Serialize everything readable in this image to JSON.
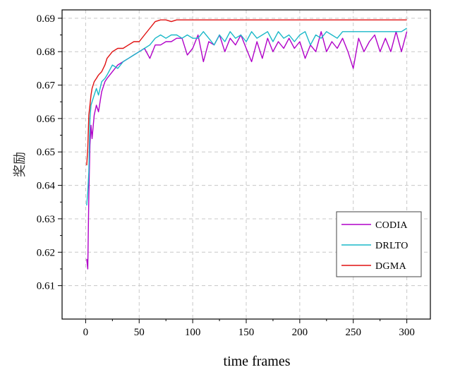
{
  "chart_data": {
    "type": "line",
    "title": "",
    "xlabel": "time frames",
    "ylabel": "奖励",
    "xlim": [
      -22,
      322
    ],
    "ylim": [
      0.6,
      0.6925
    ],
    "xticks": [
      0,
      50,
      100,
      150,
      200,
      250,
      300
    ],
    "xtick_labels": [
      "0",
      "50",
      "100",
      "150",
      "200",
      "250",
      "300"
    ],
    "yticks": [
      0.61,
      0.62,
      0.63,
      0.64,
      0.65,
      0.66,
      0.67,
      0.68,
      0.69
    ],
    "ytick_labels": [
      "0.61",
      "0.62",
      "0.63",
      "0.64",
      "0.65",
      "0.66",
      "0.67",
      "0.68",
      "0.69"
    ],
    "grid": true,
    "legend_position": "bottom-right",
    "series": [
      {
        "name": "CODIA",
        "color": "#b000c8",
        "x": [
          1,
          2,
          3,
          4,
          5,
          6,
          8,
          10,
          12,
          15,
          18,
          20,
          25,
          30,
          35,
          40,
          45,
          50,
          55,
          60,
          65,
          70,
          75,
          80,
          85,
          90,
          95,
          100,
          105,
          110,
          115,
          120,
          125,
          130,
          135,
          140,
          145,
          150,
          155,
          160,
          165,
          170,
          175,
          180,
          185,
          190,
          195,
          200,
          205,
          210,
          215,
          220,
          225,
          230,
          235,
          240,
          245,
          250,
          255,
          260,
          265,
          270,
          275,
          280,
          285,
          290,
          295,
          300
        ],
        "y": [
          0.618,
          0.615,
          0.637,
          0.652,
          0.658,
          0.654,
          0.661,
          0.664,
          0.662,
          0.668,
          0.671,
          0.672,
          0.674,
          0.676,
          0.677,
          0.678,
          0.679,
          0.68,
          0.681,
          0.678,
          0.682,
          0.682,
          0.683,
          0.683,
          0.684,
          0.684,
          0.679,
          0.681,
          0.685,
          0.677,
          0.683,
          0.682,
          0.685,
          0.68,
          0.684,
          0.682,
          0.685,
          0.681,
          0.677,
          0.683,
          0.678,
          0.684,
          0.68,
          0.683,
          0.681,
          0.684,
          0.681,
          0.683,
          0.678,
          0.682,
          0.68,
          0.686,
          0.68,
          0.683,
          0.681,
          0.684,
          0.68,
          0.675,
          0.684,
          0.68,
          0.683,
          0.685,
          0.68,
          0.684,
          0.68,
          0.686,
          0.68,
          0.686
        ]
      },
      {
        "name": "DRLTO",
        "color": "#1ab8c8",
        "x": [
          1,
          2,
          3,
          4,
          5,
          6,
          8,
          10,
          12,
          15,
          18,
          20,
          25,
          30,
          35,
          40,
          45,
          50,
          55,
          60,
          65,
          70,
          75,
          80,
          85,
          90,
          95,
          100,
          105,
          110,
          115,
          120,
          125,
          130,
          135,
          140,
          145,
          150,
          155,
          160,
          165,
          170,
          175,
          180,
          185,
          190,
          195,
          200,
          205,
          210,
          215,
          220,
          225,
          230,
          235,
          240,
          245,
          250,
          255,
          260,
          265,
          270,
          275,
          280,
          285,
          290,
          295,
          300
        ],
        "y": [
          0.634,
          0.638,
          0.644,
          0.66,
          0.664,
          0.665,
          0.667,
          0.669,
          0.667,
          0.671,
          0.672,
          0.673,
          0.676,
          0.675,
          0.677,
          0.678,
          0.679,
          0.68,
          0.681,
          0.682,
          0.684,
          0.685,
          0.684,
          0.685,
          0.685,
          0.684,
          0.685,
          0.684,
          0.684,
          0.686,
          0.684,
          0.682,
          0.685,
          0.683,
          0.686,
          0.684,
          0.685,
          0.683,
          0.686,
          0.684,
          0.685,
          0.686,
          0.683,
          0.686,
          0.684,
          0.685,
          0.683,
          0.685,
          0.686,
          0.682,
          0.685,
          0.684,
          0.686,
          0.685,
          0.684,
          0.686,
          0.686,
          0.686,
          0.686,
          0.686,
          0.686,
          0.686,
          0.686,
          0.686,
          0.686,
          0.686,
          0.686,
          0.687
        ]
      },
      {
        "name": "DGMA",
        "color": "#e01010",
        "x": [
          1,
          2,
          3,
          4,
          5,
          6,
          8,
          10,
          12,
          15,
          18,
          20,
          25,
          30,
          35,
          40,
          45,
          50,
          55,
          60,
          65,
          70,
          75,
          80,
          85,
          90,
          95,
          100,
          105,
          110,
          115,
          120,
          125,
          130,
          135,
          140,
          145,
          150,
          155,
          160,
          165,
          170,
          175,
          180,
          185,
          190,
          195,
          200,
          205,
          210,
          215,
          220,
          225,
          230,
          235,
          240,
          245,
          250,
          255,
          260,
          265,
          270,
          275,
          280,
          285,
          290,
          295,
          300
        ],
        "y": [
          0.646,
          0.651,
          0.661,
          0.664,
          0.667,
          0.669,
          0.671,
          0.672,
          0.673,
          0.674,
          0.676,
          0.678,
          0.68,
          0.681,
          0.681,
          0.682,
          0.683,
          0.683,
          0.685,
          0.687,
          0.689,
          0.6895,
          0.6895,
          0.689,
          0.6895,
          0.6895,
          0.6895,
          0.6895,
          0.6895,
          0.6895,
          0.6895,
          0.6895,
          0.6895,
          0.6895,
          0.6895,
          0.6895,
          0.6895,
          0.6895,
          0.6895,
          0.6895,
          0.6895,
          0.6895,
          0.6895,
          0.6895,
          0.6895,
          0.6895,
          0.6895,
          0.6895,
          0.6895,
          0.6895,
          0.6895,
          0.6895,
          0.6895,
          0.6895,
          0.6895,
          0.6895,
          0.6895,
          0.6895,
          0.6895,
          0.6895,
          0.6895,
          0.6895,
          0.6895,
          0.6895,
          0.6895,
          0.6895,
          0.6895,
          0.6895
        ]
      }
    ]
  }
}
